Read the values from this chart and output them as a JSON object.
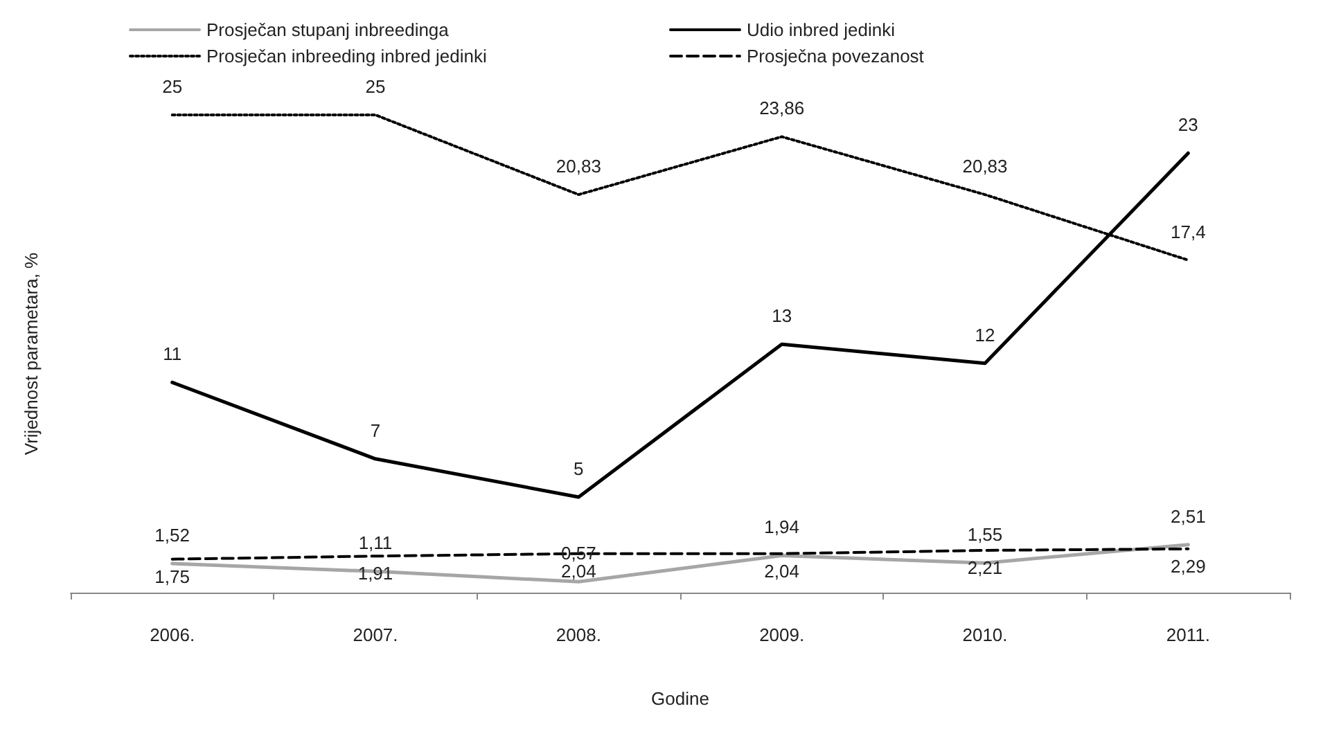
{
  "chart_data": {
    "type": "line",
    "xlabel": "Godine",
    "ylabel": "Vrijednost parametara, %",
    "categories": [
      "2006.",
      "2007.",
      "2008.",
      "2009.",
      "2010.",
      "2011."
    ],
    "legend": "top",
    "marker": "none",
    "series": [
      {
        "name": "Prosječan stupanj inbreedinga",
        "color": "#a6a6a6",
        "line_style": "solid",
        "values": [
          1.52,
          1.11,
          0.57,
          1.94,
          1.55,
          2.51
        ],
        "value_labels": [
          "1,52",
          "1,11",
          "0,57",
          "1,94",
          "1,55",
          "2,51"
        ]
      },
      {
        "name": "Udio inbred jedinki",
        "color": "#000000",
        "line_style": "solid",
        "values": [
          11,
          7,
          5,
          13,
          12,
          23
        ],
        "value_labels": [
          "11",
          "7",
          "5",
          "13",
          "12",
          "23"
        ]
      },
      {
        "name": "Prosječan inbreeding inbred jedinki",
        "color": "#000000",
        "line_style": "dotted",
        "values": [
          25,
          25,
          20.83,
          23.86,
          20.83,
          17.4
        ],
        "value_labels": [
          "25",
          "25",
          "20,83",
          "23,86",
          "20,83",
          "17,4"
        ]
      },
      {
        "name": "Prosječna povezanost",
        "color": "#000000",
        "line_style": "dashed",
        "values": [
          1.75,
          1.91,
          2.04,
          2.04,
          2.21,
          2.29
        ],
        "value_labels": [
          "1,75",
          "1,91",
          "2,04",
          "2,04",
          "2,21",
          "2,29"
        ]
      }
    ]
  }
}
